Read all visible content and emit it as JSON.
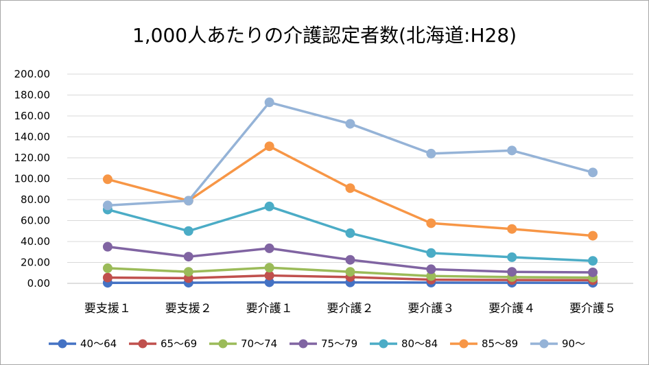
{
  "chart_data": {
    "type": "line",
    "title": "1,000人あたりの介護認定者数(北海道:H28)",
    "xlabel": "",
    "ylabel": "",
    "categories": [
      "要支援１",
      "要支援２",
      "要介護１",
      "要介護２",
      "要介護３",
      "要介護４",
      "要介護５"
    ],
    "ylim": [
      0,
      200
    ],
    "yticks": [
      "0.00",
      "20.00",
      "40.00",
      "60.00",
      "80.00",
      "100.00",
      "120.00",
      "140.00",
      "160.00",
      "180.00",
      "200.00"
    ],
    "grid": true,
    "legend_position": "bottom",
    "series": [
      {
        "name": "40～64",
        "color": "#4472c4",
        "values": [
          0.5,
          0.6,
          1.0,
          0.9,
          0.7,
          0.6,
          0.5
        ]
      },
      {
        "name": "65～69",
        "color": "#c0504d",
        "values": [
          5.5,
          5.0,
          7.5,
          6.0,
          3.5,
          3.2,
          3.0
        ]
      },
      {
        "name": "70～74",
        "color": "#9bbb59",
        "values": [
          14.5,
          11.0,
          15.0,
          11.0,
          7.0,
          6.0,
          5.5
        ]
      },
      {
        "name": "75～79",
        "color": "#8064a2",
        "values": [
          35.0,
          25.5,
          33.5,
          22.5,
          13.5,
          11.0,
          10.5
        ]
      },
      {
        "name": "80～84",
        "color": "#4bacc6",
        "values": [
          70.5,
          50.0,
          73.5,
          48.0,
          29.0,
          25.0,
          21.5
        ]
      },
      {
        "name": "85～89",
        "color": "#f79646",
        "values": [
          99.5,
          79.0,
          131.0,
          91.0,
          57.5,
          52.0,
          45.5
        ]
      },
      {
        "name": "90～",
        "color": "#95b3d7",
        "values": [
          74.5,
          79.0,
          173.0,
          152.5,
          124.0,
          127.0,
          106.0
        ]
      }
    ]
  }
}
